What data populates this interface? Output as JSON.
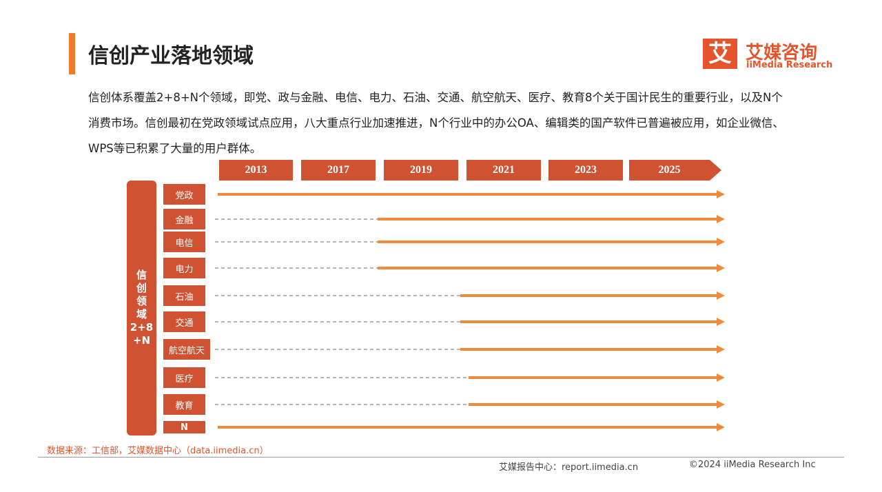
{
  "header": {
    "title": "信创产业落地领域",
    "logo_mark": "艾",
    "logo_name": "艾媒咨询",
    "logo_en": "iiMedia Research"
  },
  "intro": "信创体系覆盖2+8+N个领域，即党、政与金融、电信、电力、石油、交通、航空航天、医疗、教育8个关于国计民生的重要行业，以及N个消费市场。信创最初在党政领域试点应用，八大重点行业加速推进，N个行业中的办公OA、编辑类的国产软件已普遍被应用，如企业微信、WPS等已积累了大量的用户群体。",
  "timeline": {
    "years": [
      "2013",
      "2017",
      "2019",
      "2021",
      "2023",
      "2025"
    ],
    "side_label": [
      "信",
      "创",
      "领",
      "域",
      "2+8",
      "+N"
    ],
    "rows": [
      "党政",
      "金融",
      "电信",
      "电力",
      "石油",
      "交通",
      "航空航天",
      "医疗",
      "教育",
      "N"
    ]
  },
  "source": "数据来源：工信部，艾媒数据中心（data.iimedia.cn）",
  "footer": {
    "report_center": "艾媒报告中心：report.iimedia.cn",
    "copyright": "©2024  iiMedia Research  Inc"
  }
}
